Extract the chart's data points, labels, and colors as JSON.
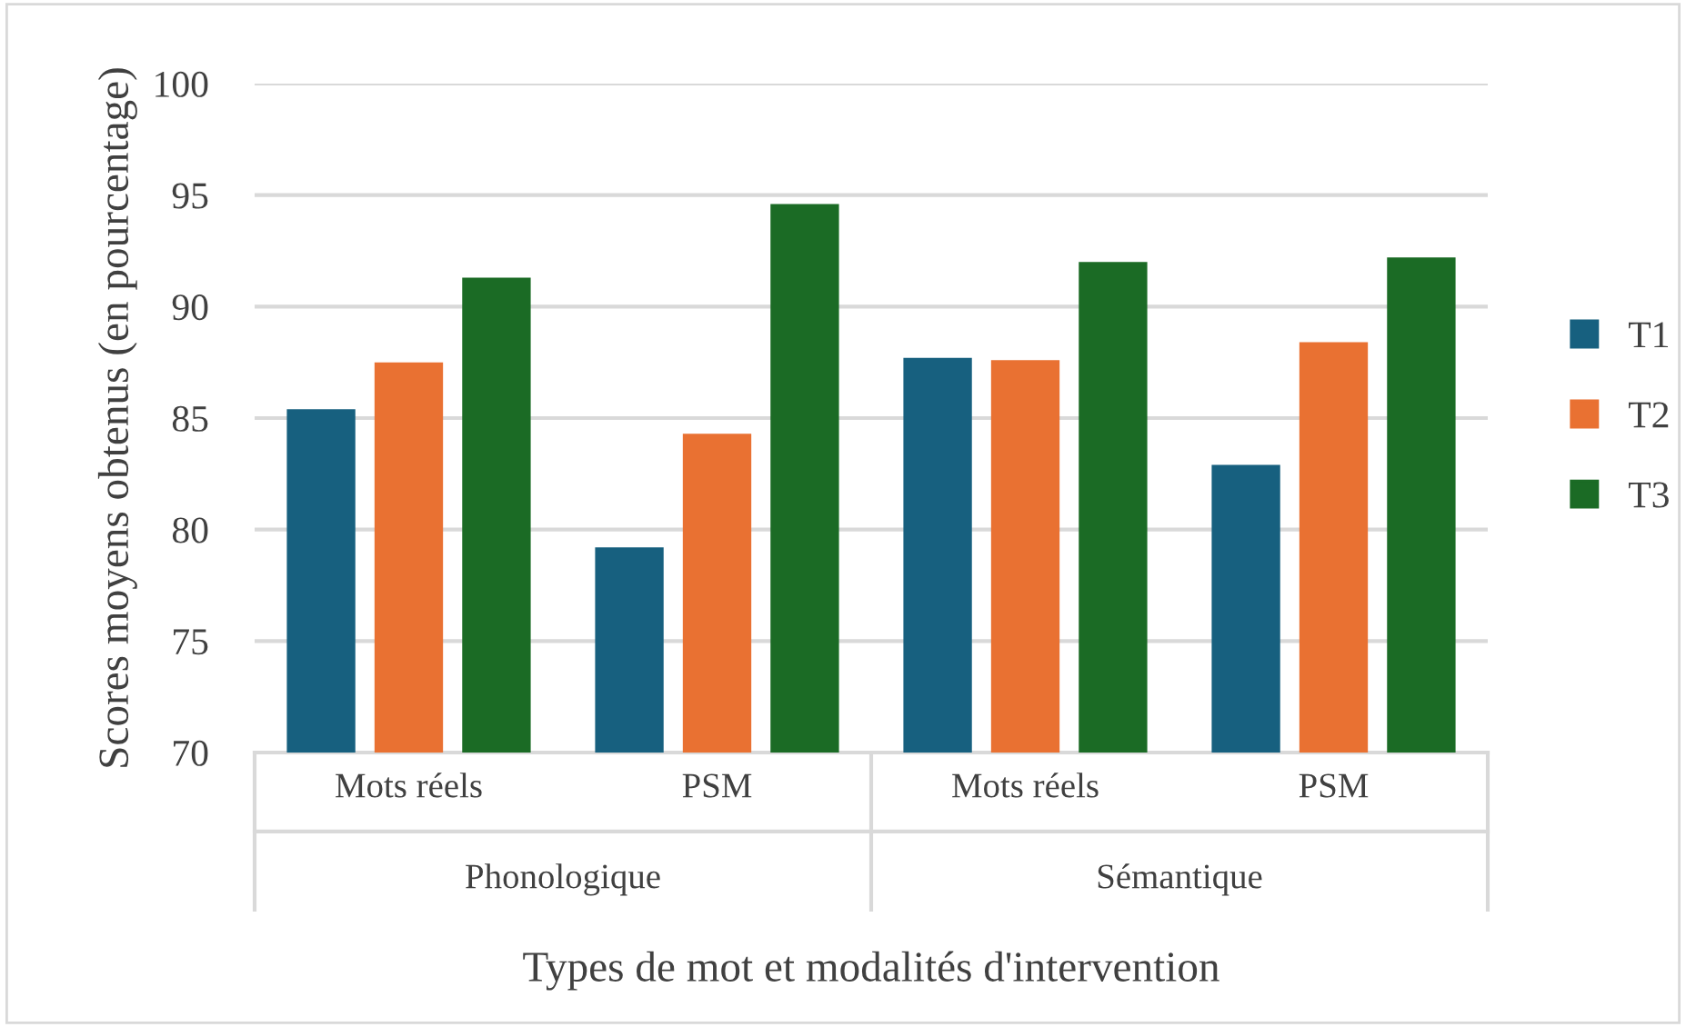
{
  "chart_data": {
    "type": "bar",
    "xlabel": "Types de mot et modalités d'intervention",
    "ylabel": "Scores moyens obtenus (en pourcentage)",
    "categories": [
      "Mots réels",
      "PSM",
      "Mots réels",
      "PSM"
    ],
    "series": [
      {
        "name": "T1",
        "color": "#17607f",
        "values": [
          85.4,
          79.2,
          87.7,
          82.9
        ]
      },
      {
        "name": "T2",
        "color": "#e97132",
        "values": [
          87.5,
          84.3,
          87.6,
          88.4
        ]
      },
      {
        "name": "T3",
        "color": "#1b6b25",
        "values": [
          91.3,
          94.6,
          92.0,
          92.2
        ]
      }
    ],
    "annotations": [
      "Phonologique",
      "Sémantique"
    ],
    "ylim": [
      70,
      100
    ],
    "yticks": [
      70,
      75,
      80,
      85,
      90,
      95,
      100
    ],
    "grid": "y",
    "legend": "right"
  }
}
